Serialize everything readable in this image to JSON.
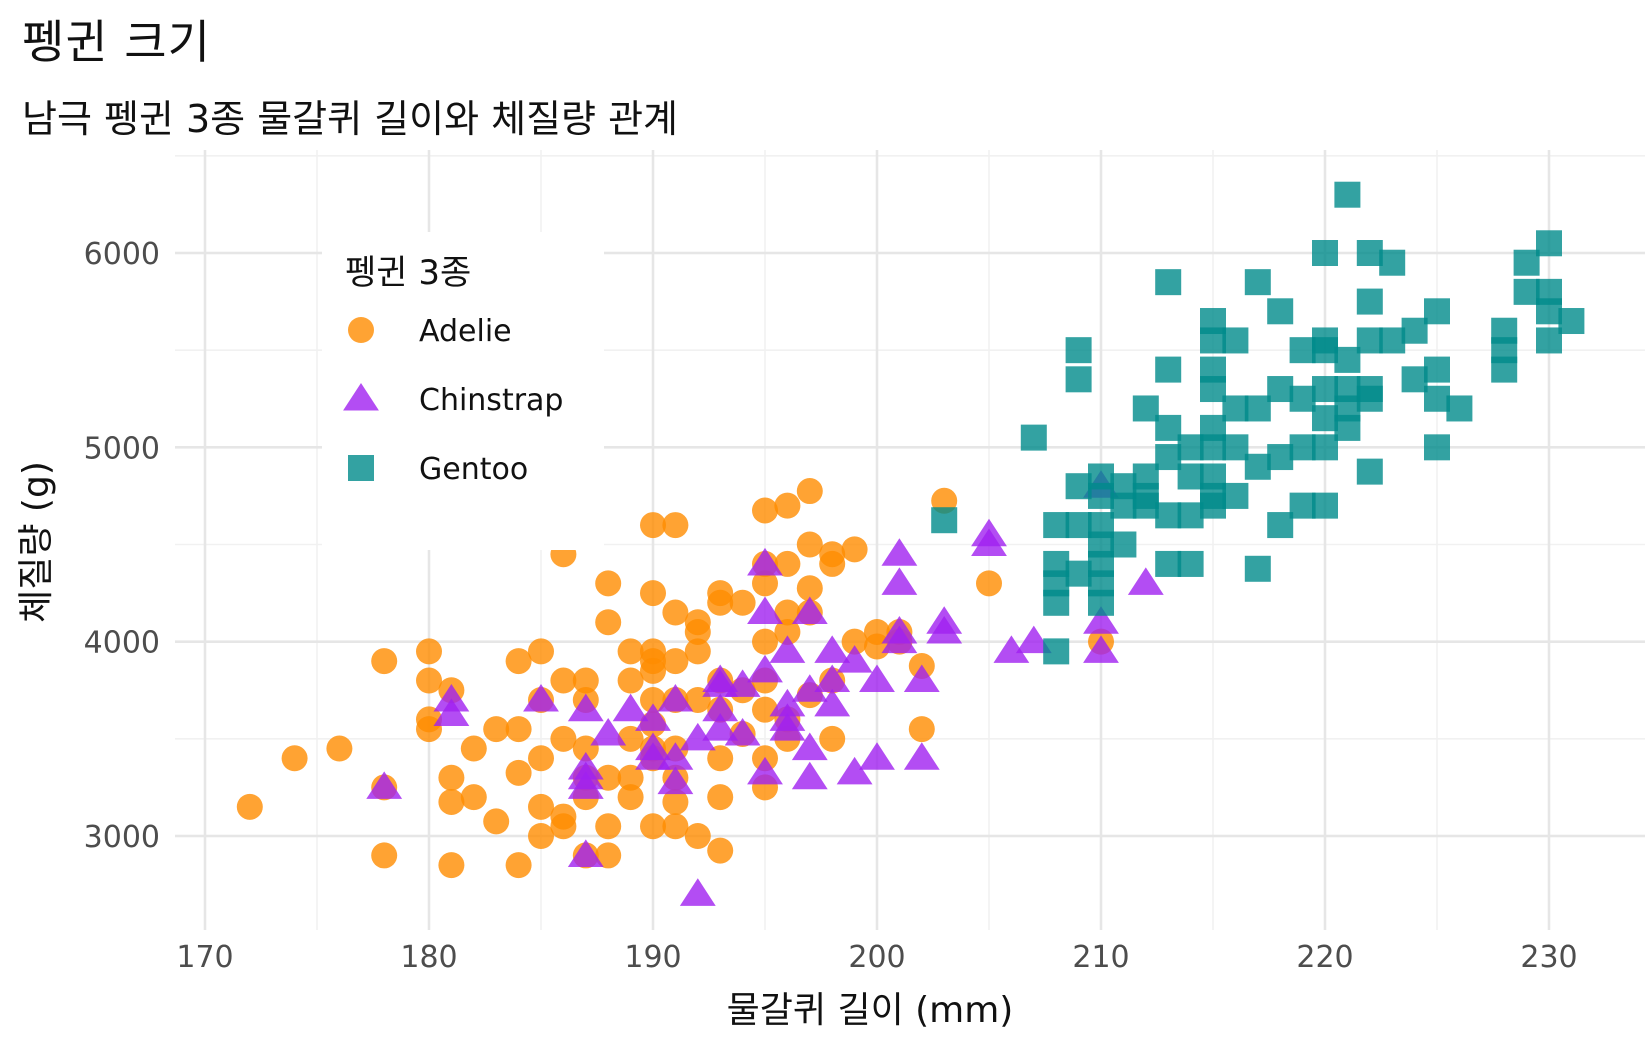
{
  "title": "펭귄 크기",
  "subtitle": "남극 펭귄 3종 물갈퀴 길이와 체질량 관계",
  "chart_data": {
    "type": "scatter",
    "title": "펭귄 크기",
    "subtitle": "남극 펭귄 3종 물갈퀴 길이와 체질량 관계",
    "xlabel": "물갈퀴 길이 (mm)",
    "ylabel": "체질량 (g)",
    "xlim": [
      168,
      234
    ],
    "ylim": [
      2600,
      6500
    ],
    "xticks": [
      170,
      180,
      190,
      200,
      210,
      220,
      230
    ],
    "yticks": [
      3000,
      4000,
      5000,
      6000
    ],
    "grid": true,
    "legend": {
      "title": "펭귄 3종",
      "placement": "top-left"
    },
    "series": [
      {
        "name": "Adelie",
        "color": "#FF8C00",
        "marker": "circle",
        "points": [
          [
            172,
            3150
          ],
          [
            174,
            3400
          ],
          [
            176,
            3450
          ],
          [
            178,
            3900
          ],
          [
            178,
            3250
          ],
          [
            178,
            2900
          ],
          [
            180,
            3950
          ],
          [
            180,
            3800
          ],
          [
            180,
            3600
          ],
          [
            180,
            3550
          ],
          [
            181,
            3750
          ],
          [
            181,
            3300
          ],
          [
            181,
            3175
          ],
          [
            181,
            2850
          ],
          [
            182,
            3450
          ],
          [
            182,
            3200
          ],
          [
            183,
            3550
          ],
          [
            183,
            3075
          ],
          [
            184,
            3900
          ],
          [
            184,
            3325
          ],
          [
            184,
            3550
          ],
          [
            184,
            2850
          ],
          [
            185,
            3950
          ],
          [
            185,
            3700
          ],
          [
            185,
            3400
          ],
          [
            185,
            3150
          ],
          [
            185,
            3000
          ],
          [
            186,
            4450
          ],
          [
            186,
            3800
          ],
          [
            186,
            3500
          ],
          [
            186,
            3100
          ],
          [
            186,
            3050
          ],
          [
            187,
            3800
          ],
          [
            187,
            3700
          ],
          [
            187,
            3450
          ],
          [
            187,
            3300
          ],
          [
            187,
            3200
          ],
          [
            187,
            2900
          ],
          [
            188,
            4300
          ],
          [
            188,
            4100
          ],
          [
            188,
            3300
          ],
          [
            188,
            3050
          ],
          [
            188,
            2900
          ],
          [
            189,
            3950
          ],
          [
            189,
            3800
          ],
          [
            189,
            3500
          ],
          [
            189,
            3300
          ],
          [
            189,
            3200
          ],
          [
            190,
            4600
          ],
          [
            190,
            4250
          ],
          [
            190,
            3950
          ],
          [
            190,
            3900
          ],
          [
            190,
            3850
          ],
          [
            190,
            3700
          ],
          [
            190,
            3575
          ],
          [
            190,
            3450
          ],
          [
            190,
            3400
          ],
          [
            190,
            3050
          ],
          [
            191,
            4600
          ],
          [
            191,
            4150
          ],
          [
            191,
            3900
          ],
          [
            191,
            3700
          ],
          [
            191,
            3450
          ],
          [
            191,
            3300
          ],
          [
            191,
            3175
          ],
          [
            191,
            3050
          ],
          [
            192,
            4100
          ],
          [
            192,
            4050
          ],
          [
            192,
            3950
          ],
          [
            192,
            3700
          ],
          [
            192,
            3000
          ],
          [
            193,
            4250
          ],
          [
            193,
            4200
          ],
          [
            193,
            3800
          ],
          [
            193,
            3650
          ],
          [
            193,
            3400
          ],
          [
            193,
            3200
          ],
          [
            193,
            2925
          ],
          [
            194,
            4200
          ],
          [
            194,
            3750
          ],
          [
            194,
            3525
          ],
          [
            195,
            4675
          ],
          [
            195,
            4400
          ],
          [
            195,
            4300
          ],
          [
            195,
            4000
          ],
          [
            195,
            3800
          ],
          [
            195,
            3650
          ],
          [
            195,
            3400
          ],
          [
            195,
            3250
          ],
          [
            196,
            4700
          ],
          [
            196,
            4400
          ],
          [
            196,
            4150
          ],
          [
            196,
            4050
          ],
          [
            196,
            3600
          ],
          [
            196,
            3500
          ],
          [
            197,
            4775
          ],
          [
            197,
            4500
          ],
          [
            197,
            4275
          ],
          [
            197,
            4150
          ],
          [
            197,
            3725
          ],
          [
            198,
            4450
          ],
          [
            198,
            4400
          ],
          [
            198,
            3800
          ],
          [
            198,
            3500
          ],
          [
            199,
            4475
          ],
          [
            199,
            4000
          ],
          [
            200,
            4050
          ],
          [
            200,
            3975
          ],
          [
            201,
            4050
          ],
          [
            201,
            4000
          ],
          [
            202,
            3875
          ],
          [
            202,
            3550
          ],
          [
            203,
            4725
          ],
          [
            205,
            4300
          ],
          [
            210,
            4000
          ]
        ]
      },
      {
        "name": "Chinstrap",
        "color": "#A020F0",
        "marker": "triangle",
        "points": [
          [
            178,
            3250
          ],
          [
            181,
            3700
          ],
          [
            181,
            3625
          ],
          [
            185,
            3700
          ],
          [
            187,
            3650
          ],
          [
            187,
            3350
          ],
          [
            187,
            3300
          ],
          [
            187,
            3250
          ],
          [
            187,
            2900
          ],
          [
            188,
            3525
          ],
          [
            189,
            3650
          ],
          [
            190,
            3600
          ],
          [
            190,
            3450
          ],
          [
            190,
            3400
          ],
          [
            191,
            3700
          ],
          [
            191,
            3400
          ],
          [
            191,
            3275
          ],
          [
            192,
            2700
          ],
          [
            192,
            3500
          ],
          [
            193,
            3800
          ],
          [
            193,
            3775
          ],
          [
            193,
            3650
          ],
          [
            193,
            3550
          ],
          [
            194,
            3775
          ],
          [
            194,
            3525
          ],
          [
            195,
            4400
          ],
          [
            195,
            4150
          ],
          [
            195,
            3850
          ],
          [
            195,
            3325
          ],
          [
            196,
            3950
          ],
          [
            196,
            3675
          ],
          [
            196,
            3600
          ],
          [
            196,
            3550
          ],
          [
            197,
            4150
          ],
          [
            197,
            3750
          ],
          [
            197,
            3450
          ],
          [
            197,
            3300
          ],
          [
            198,
            3950
          ],
          [
            198,
            3800
          ],
          [
            198,
            3675
          ],
          [
            199,
            3900
          ],
          [
            199,
            3325
          ],
          [
            200,
            3800
          ],
          [
            200,
            3400
          ],
          [
            201,
            4450
          ],
          [
            201,
            4300
          ],
          [
            201,
            4050
          ],
          [
            201,
            4000
          ],
          [
            202,
            3800
          ],
          [
            202,
            3400
          ],
          [
            203,
            4100
          ],
          [
            203,
            4050
          ],
          [
            205,
            4550
          ],
          [
            205,
            4500
          ],
          [
            206,
            3950
          ],
          [
            207,
            4000
          ],
          [
            210,
            4800
          ],
          [
            210,
            4100
          ],
          [
            210,
            3950
          ],
          [
            212,
            4300
          ]
        ]
      },
      {
        "name": "Gentoo",
        "color": "#008B8B",
        "marker": "square",
        "points": [
          [
            203,
            4625
          ],
          [
            207,
            5050
          ],
          [
            208,
            4600
          ],
          [
            208,
            4400
          ],
          [
            208,
            4300
          ],
          [
            208,
            4200
          ],
          [
            208,
            3950
          ],
          [
            209,
            5500
          ],
          [
            209,
            4800
          ],
          [
            209,
            4600
          ],
          [
            209,
            4350
          ],
          [
            209,
            5350
          ],
          [
            210,
            4850
          ],
          [
            210,
            4750
          ],
          [
            210,
            4600
          ],
          [
            210,
            4500
          ],
          [
            210,
            4400
          ],
          [
            210,
            4200
          ],
          [
            210,
            4300
          ],
          [
            211,
            4800
          ],
          [
            211,
            4700
          ],
          [
            211,
            4500
          ],
          [
            212,
            4850
          ],
          [
            212,
            4750
          ],
          [
            212,
            4700
          ],
          [
            212,
            5200
          ],
          [
            213,
            5850
          ],
          [
            213,
            5400
          ],
          [
            213,
            5100
          ],
          [
            213,
            4950
          ],
          [
            213,
            4650
          ],
          [
            213,
            4400
          ],
          [
            214,
            5000
          ],
          [
            214,
            4850
          ],
          [
            214,
            4650
          ],
          [
            214,
            4400
          ],
          [
            215,
            5650
          ],
          [
            215,
            5550
          ],
          [
            215,
            5400
          ],
          [
            215,
            5300
          ],
          [
            215,
            5100
          ],
          [
            215,
            5000
          ],
          [
            215,
            4850
          ],
          [
            215,
            4750
          ],
          [
            215,
            4700
          ],
          [
            216,
            5550
          ],
          [
            216,
            5200
          ],
          [
            216,
            5000
          ],
          [
            216,
            4750
          ],
          [
            217,
            5850
          ],
          [
            217,
            5200
          ],
          [
            217,
            4900
          ],
          [
            217,
            4375
          ],
          [
            218,
            5700
          ],
          [
            218,
            5300
          ],
          [
            218,
            4950
          ],
          [
            218,
            4600
          ],
          [
            219,
            5500
          ],
          [
            219,
            5250
          ],
          [
            219,
            5000
          ],
          [
            219,
            4700
          ],
          [
            220,
            6000
          ],
          [
            220,
            5550
          ],
          [
            220,
            5500
          ],
          [
            220,
            5300
          ],
          [
            220,
            5150
          ],
          [
            220,
            5000
          ],
          [
            220,
            4700
          ],
          [
            221,
            6300
          ],
          [
            221,
            5450
          ],
          [
            221,
            5200
          ],
          [
            221,
            5100
          ],
          [
            221,
            5300
          ],
          [
            222,
            6000
          ],
          [
            222,
            5750
          ],
          [
            222,
            5550
          ],
          [
            222,
            5300
          ],
          [
            222,
            5250
          ],
          [
            222,
            4875
          ],
          [
            223,
            5950
          ],
          [
            223,
            5550
          ],
          [
            224,
            5600
          ],
          [
            224,
            5350
          ],
          [
            225,
            5700
          ],
          [
            225,
            5400
          ],
          [
            225,
            5250
          ],
          [
            225,
            5000
          ],
          [
            226,
            5200
          ],
          [
            228,
            5600
          ],
          [
            228,
            5500
          ],
          [
            228,
            5400
          ],
          [
            229,
            5950
          ],
          [
            229,
            5800
          ],
          [
            230,
            6050
          ],
          [
            230,
            5800
          ],
          [
            230,
            5700
          ],
          [
            230,
            5550
          ],
          [
            231,
            5650
          ]
        ]
      }
    ]
  }
}
